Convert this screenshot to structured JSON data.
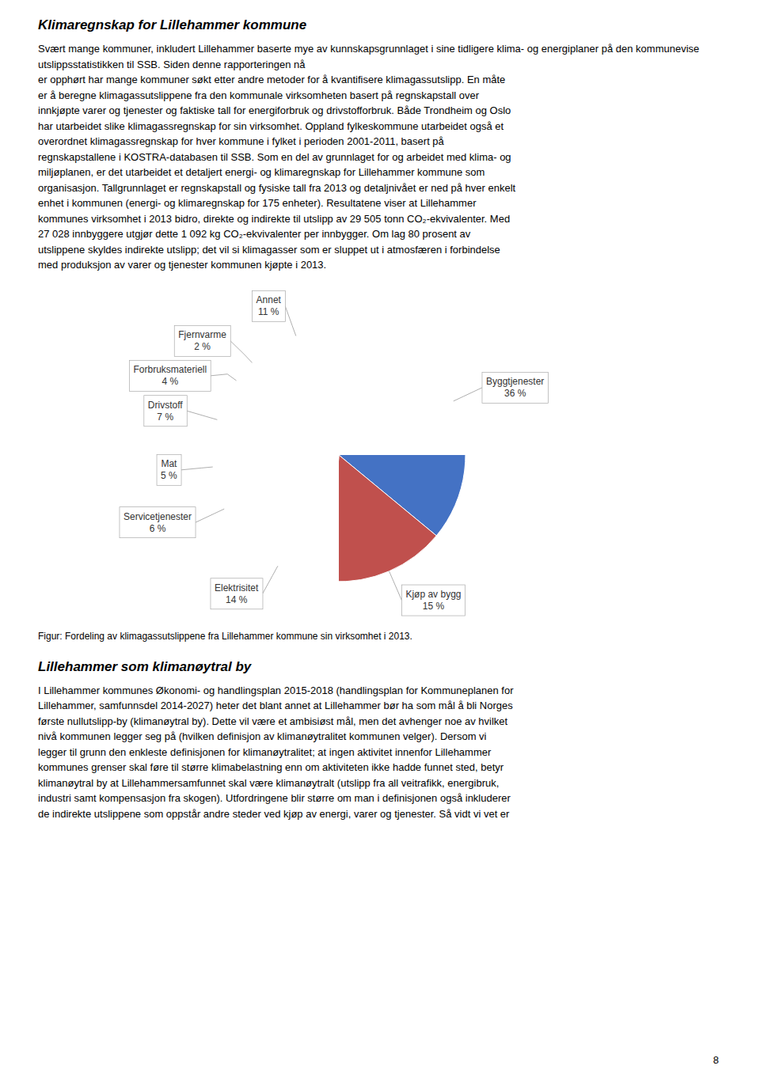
{
  "title_section1": "Klimaregnskap for Lillehammer kommune",
  "body_lines1": [
    "Svært mange kommuner, inkludert Lillehammer baserte mye av kunnskapsgrunnlaget i sine tidligere klima- og energiplaner på den kommunevise utslippsstatistikken til SSB. Siden denne rapporteringen nå",
    "er opphørt har mange kommuner søkt etter andre metoder for å kvantifisere klimagassutslipp. En måte",
    "er å beregne klimagassutslippene fra den kommunale virksomheten basert på regnskapstall over",
    "innkjøpte varer og tjenester og faktiske tall for energiforbruk og drivstofforbruk. Både Trondheim og Oslo",
    "har utarbeidet slike klimagassregnskap for sin virksomhet. Oppland fylkeskommune utarbeidet også et",
    "overordnet klimagassregnskap for hver kommune i fylket i perioden 2001-2011, basert på",
    "regnskapstallene i KOSTRA-databasen til SSB. Som en del av grunnlaget for og arbeidet med klima- og",
    "miljøplanen, er det utarbeidet et detaljert energi- og klimaregnskap for Lillehammer kommune som",
    "organisasjon. Tallgrunnlaget er regnskapstall og fysiske tall fra 2013 og detaljnivået er ned på hver enkelt",
    "enhet i kommunen (energi- og klimaregnskap for 175 enheter). Resultatene viser at Lillehammer",
    "kommunes virksomhet i 2013 bidro, direkte og indirekte til utslipp av 29 505 tonn CO₂-ekvivalenter. Med",
    "27 028 innbyggere utgjør dette 1 092 kg CO₂-ekvivalenter per innbygger. Om lag 80 prosent av",
    "utslippene skyldes indirekte utslipp; det vil si klimagasser som er sluppet ut i atmosfæren i forbindelse",
    "med produksjon av varer og tjenester kommunen kjøpte i 2013."
  ],
  "title_section2": "Lillehammer som klimanøytral by",
  "body_lines2": [
    "I Lillehammer kommunes Økonomi- og handlingsplan 2015-2018 (handlingsplan for Kommuneplanen for",
    "Lillehammer, samfunnsdel 2014-2027) heter det blant annet at Lillehammer bør ha som mål å bli Norges",
    "første nullutslipp-by (klimanøytral by). Dette vil være et ambisiøst mål, men det avhenger noe av hvilket",
    "nivå kommunen legger seg på (hvilken definisjon av klimanøytralitet kommunen velger). Dersom vi",
    "legger til grunn den enkleste definisjonen for klimanøytralitet; at ingen aktivitet innenfor Lillehammer",
    "kommunes grenser skal føre til større klimabelastning enn om aktiviteten ikke hadde funnet sted, betyr",
    "klimanøytral by at Lillehammersamfunnet skal være klimanøytralt (utslipp fra all veitrafikk, energibruk,",
    "industri samt kompensasjon fra skogen). Utfordringene blir større om man i definisjonen også inkluderer",
    "de indirekte utslippene som oppstår andre steder ved kjøp av energi, varer og tjenester. Så vidt vi vet er"
  ],
  "page_number": "8",
  "chart_data": {
    "type": "pie",
    "title": "Figur: Fordeling av klimagassutslippene fra Lillehammer kommune sin virksomhet i 2013.",
    "categories": [
      "Byggtjenester",
      "Kjøp av bygg",
      "Elektrisitet",
      "Servicetjenester",
      "Mat",
      "Drivstoff",
      "Forbruksmateriell",
      "Fjernvarme",
      "Annet"
    ],
    "values": [
      36,
      15,
      14,
      6,
      5,
      7,
      4,
      2,
      11
    ],
    "value_labels": [
      "36 %",
      "15 %",
      "14 %",
      "6 %",
      "5 %",
      "7 %",
      "4 %",
      "2 %",
      "11 %"
    ],
    "colors": [
      "#4472C4",
      "#C0504D",
      "#9BBB59",
      "#7F5A9E",
      "#4BACC6",
      "#F79646",
      "#1F497D",
      "#943634",
      "#4F6228"
    ],
    "data_labels": true
  }
}
